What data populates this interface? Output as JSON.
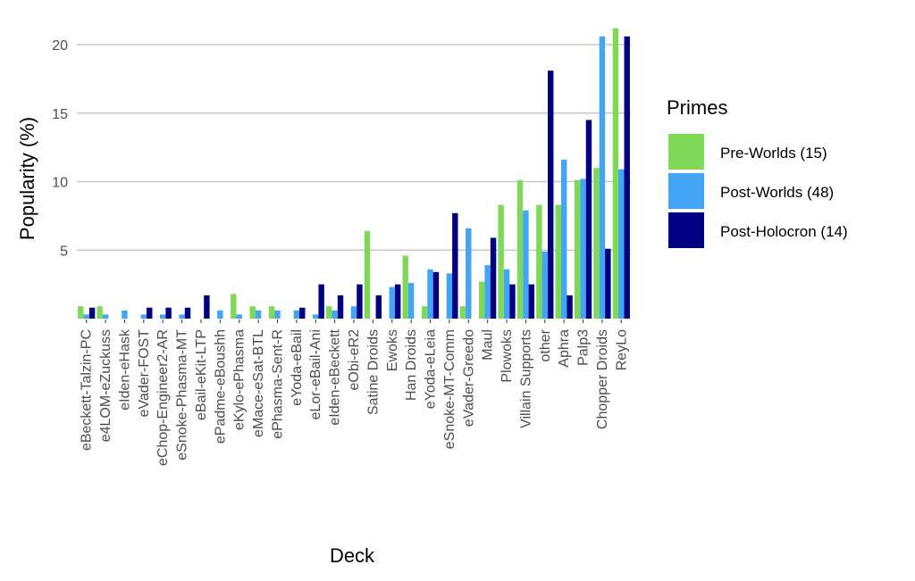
{
  "chart_data": {
    "type": "bar",
    "xlabel": "Deck",
    "ylabel": "Popularity (%)",
    "ylim": [
      0,
      22
    ],
    "yticks": [
      5,
      10,
      15,
      20
    ],
    "grid": true,
    "legend": {
      "title": "Primes",
      "placement": "right"
    },
    "categories": [
      "eBeckett-Talzin-PC",
      "e4LOM-eZuckuss",
      "eIden-eHask",
      "eVader-FOST",
      "eChop-Engineer2-AR",
      "eSnoke-Phasma-MT",
      "eBail-eKit-LTP",
      "ePadme-eBoushh",
      "eKylo-ePhasma",
      "eMace-eSat-BTL",
      "ePhasma-Sent-R",
      "eYoda-eBail",
      "eLor-eBail-Ani",
      "eIden-eBeckett",
      "eObi-eR2",
      "Satine Droids",
      "Ewoks",
      "Han Droids",
      "eYoda-eLeia",
      "eSnoke-MT-Comm",
      "eVader-Greedo",
      "Maul",
      "Plowoks",
      "Villain Supports",
      "other",
      "Aphra",
      "Palp3",
      "Chopper Droids",
      "ReyLo"
    ],
    "series": [
      {
        "name": "Pre-Worlds (15)",
        "color": "#7ED957",
        "values": [
          0.9,
          0.9,
          0,
          0,
          0,
          0,
          0,
          0,
          1.8,
          0.9,
          0.9,
          0,
          0,
          0.9,
          0,
          6.4,
          0,
          4.6,
          0.9,
          0,
          0.9,
          2.7,
          8.3,
          10.1,
          8.3,
          8.3,
          10.1,
          11.0,
          21.2
        ]
      },
      {
        "name": "Post-Worlds (48)",
        "color": "#42A5F5",
        "values": [
          0.3,
          0.3,
          0.6,
          0.3,
          0.3,
          0.3,
          0,
          0.6,
          0.3,
          0.6,
          0.6,
          0.6,
          0.3,
          0.6,
          0.9,
          0,
          2.3,
          2.6,
          3.6,
          3.3,
          6.6,
          3.9,
          3.6,
          7.9,
          4.9,
          11.6,
          10.2,
          20.6,
          10.9
        ]
      },
      {
        "name": "Post-Holocron (14)",
        "color": "#000080",
        "values": [
          0.8,
          0,
          0,
          0.8,
          0.8,
          0.8,
          1.7,
          0,
          0,
          0,
          0,
          0.8,
          2.5,
          1.7,
          2.5,
          1.7,
          2.5,
          0,
          3.4,
          7.7,
          0,
          5.9,
          2.5,
          2.5,
          18.1,
          1.7,
          14.5,
          5.1,
          20.6
        ]
      }
    ]
  }
}
